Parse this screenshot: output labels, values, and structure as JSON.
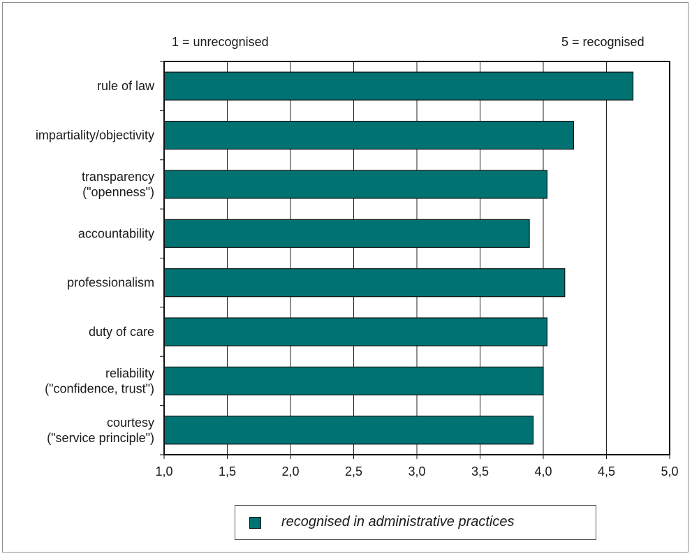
{
  "chart_data": {
    "type": "bar",
    "orientation": "horizontal",
    "categories": [
      [
        "rule of law"
      ],
      [
        "impartiality/objectivity"
      ],
      [
        "transparency",
        "(\"openness\")"
      ],
      [
        "accountability"
      ],
      [
        "professionalism"
      ],
      [
        "duty of care"
      ],
      [
        "reliability",
        "(\"confidence, trust\")"
      ],
      [
        "courtesy",
        "(\"service principle\")"
      ]
    ],
    "series": [
      {
        "name": "recognised in administrative practices",
        "values": [
          4.71,
          4.24,
          4.03,
          3.89,
          4.17,
          4.03,
          4.0,
          3.92
        ]
      }
    ],
    "xlim": [
      1.0,
      5.0
    ],
    "xticks": [
      1.0,
      1.5,
      2.0,
      2.5,
      3.0,
      3.5,
      4.0,
      4.5,
      5.0
    ],
    "xtick_labels": [
      "1,0",
      "1,5",
      "2,0",
      "2,5",
      "3,0",
      "3,5",
      "4,0",
      "4,5",
      "5,0"
    ],
    "grid": "vertical",
    "legend_position": "bottom",
    "annotations": {
      "left": "1 = unrecognised",
      "right": "5 = recognised"
    },
    "title": "",
    "xlabel": "",
    "ylabel": ""
  },
  "colors": {
    "bar": "#007272",
    "bar_edge": "#111111",
    "grid": "#222222"
  }
}
